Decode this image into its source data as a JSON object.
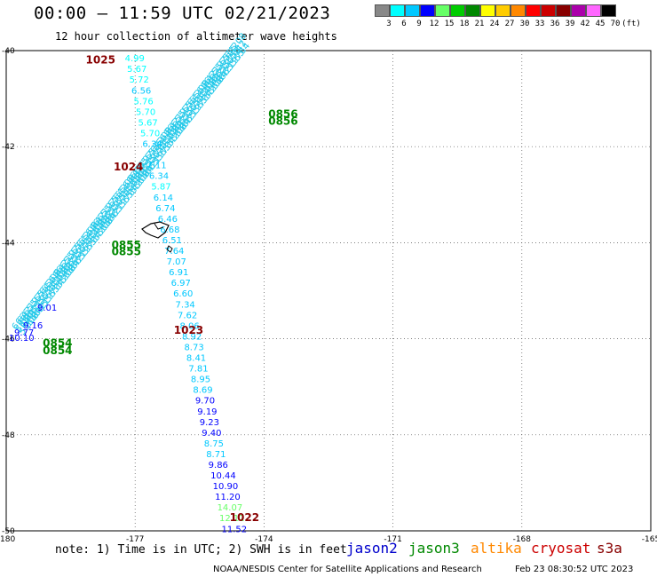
{
  "header": {
    "title": "00:00 — 11:59 UTC 02/21/2023",
    "subtitle": "12 hour collection of altimeter wave heights"
  },
  "legend": {
    "unit_label": "(ft)",
    "bins": [
      {
        "label": "3",
        "color": "#888888"
      },
      {
        "label": "6",
        "color": "#00ffff"
      },
      {
        "label": "9",
        "color": "#00c8ff"
      },
      {
        "label": "12",
        "color": "#0000ff"
      },
      {
        "label": "15",
        "color": "#66ff66"
      },
      {
        "label": "18",
        "color": "#00cc00"
      },
      {
        "label": "21",
        "color": "#008800"
      },
      {
        "label": "24",
        "color": "#ffff00"
      },
      {
        "label": "27",
        "color": "#ffcc00"
      },
      {
        "label": "30",
        "color": "#ff8800"
      },
      {
        "label": "33",
        "color": "#ff0000"
      },
      {
        "label": "36",
        "color": "#cc0000"
      },
      {
        "label": "39",
        "color": "#880000"
      },
      {
        "label": "42",
        "color": "#aa00aa"
      },
      {
        "label": "45",
        "color": "#ff66ff"
      },
      {
        "label": "70",
        "color": "#000000"
      }
    ]
  },
  "map": {
    "lon_labels": [
      "-180",
      "-177",
      "-174",
      "-171",
      "-168",
      "-165"
    ],
    "lat_labels": [
      "-40",
      "-42",
      "-44",
      "-46",
      "-48",
      "-50"
    ],
    "lon_range": [
      -180,
      -165
    ],
    "lat_range": [
      -40,
      -50
    ]
  },
  "chart_data": {
    "type": "scatter",
    "tracks": [
      {
        "name": "1025-1024-1023-1022",
        "start_lon": -176.95,
        "start_lat": -40.15,
        "end_lon": -174.7,
        "end_lat": -49.95,
        "values": [
          "4.99",
          "5.67",
          "5.72",
          "6.56",
          "5.76",
          "5.70",
          "5.67",
          "5.70",
          "6.34",
          "",
          "7.11",
          "6.34",
          "5.87",
          "6.14",
          "6.74",
          "6.46",
          "6.68",
          "6.51",
          "7.64",
          "7.07",
          "6.91",
          "6.97",
          "6.60",
          "7.34",
          "7.62",
          "8.06",
          "8.92",
          "8.73",
          "8.41",
          "7.81",
          "8.95",
          "8.69",
          "9.70",
          "9.19",
          "9.23",
          "9.40",
          "8.75",
          "8.71",
          "9.86",
          "10.44",
          "10.90",
          "11.20",
          "14.07",
          "12.12",
          "11.52"
        ]
      }
    ],
    "time_labels": [
      {
        "text": "1025",
        "lon": -178.15,
        "lat": -40.18
      },
      {
        "text": "1024",
        "lon": -177.5,
        "lat": -42.4
      },
      {
        "text": "1023",
        "lon": -176.1,
        "lat": -45.8
      },
      {
        "text": "1022",
        "lon": -174.8,
        "lat": -49.7
      },
      {
        "text": "0856",
        "lon": -173.9,
        "lat": -41.3
      },
      {
        "text": "0856",
        "lon": -173.9,
        "lat": -41.45
      },
      {
        "text": "0855",
        "lon": -177.55,
        "lat": -44.03
      },
      {
        "text": "0855",
        "lon": -177.55,
        "lat": -44.17
      },
      {
        "text": "0854",
        "lon": -179.15,
        "lat": -46.07
      },
      {
        "text": "0854",
        "lon": -179.15,
        "lat": -46.23
      }
    ],
    "swath_labels": [
      "9.01",
      "9.16",
      "9.77",
      "10.10"
    ]
  },
  "footer": {
    "note": "note:  1) Time is in UTC; 2) SWH is in feet",
    "satellites": [
      {
        "name": "jason2",
        "color": "#0000cc"
      },
      {
        "name": "jason3",
        "color": "#008800"
      },
      {
        "name": "altika",
        "color": "#ff8800"
      },
      {
        "name": "cryosat",
        "color": "#cc0000"
      },
      {
        "name": "s3a",
        "color": "#880000"
      }
    ],
    "credit": "NOAA/NESDIS Center for Satellite Applications and Research",
    "timestamp": "Feb 23 08:30:52 UTC 2023"
  }
}
